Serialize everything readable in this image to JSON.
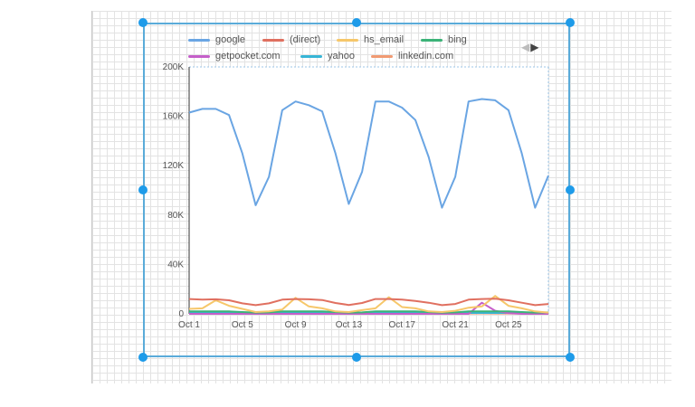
{
  "legend": {
    "items": [
      {
        "label": "google",
        "color": "#6aa5e3"
      },
      {
        "label": "(direct)",
        "color": "#e07060"
      },
      {
        "label": "hs_email",
        "color": "#f6c76a"
      },
      {
        "label": "bing",
        "color": "#3cb378"
      },
      {
        "label": "getpocket.com",
        "color": "#c45fc9"
      },
      {
        "label": "yahoo",
        "color": "#37b5d6"
      },
      {
        "label": "linkedin.com",
        "color": "#f19a72"
      }
    ],
    "pager_prev_icon": "triangle-left-icon",
    "pager_next_icon": "triangle-right-icon",
    "pager_prev": "◀",
    "pager_next": "▶"
  },
  "chart_data": {
    "type": "line",
    "x": [
      "Oct 1",
      "Oct 2",
      "Oct 3",
      "Oct 4",
      "Oct 5",
      "Oct 6",
      "Oct 7",
      "Oct 8",
      "Oct 9",
      "Oct 10",
      "Oct 11",
      "Oct 12",
      "Oct 13",
      "Oct 14",
      "Oct 15",
      "Oct 16",
      "Oct 17",
      "Oct 18",
      "Oct 19",
      "Oct 20",
      "Oct 21",
      "Oct 22",
      "Oct 23",
      "Oct 24",
      "Oct 25",
      "Oct 26",
      "Oct 27",
      "Oct 28"
    ],
    "xticks": [
      "Oct 1",
      "Oct 5",
      "Oct 9",
      "Oct 13",
      "Oct 17",
      "Oct 21",
      "Oct 25"
    ],
    "yticks": [
      "0",
      "40K",
      "80K",
      "120K",
      "160K",
      "200K"
    ],
    "ylim": [
      0,
      200000
    ],
    "series": [
      {
        "name": "google",
        "color": "#6aa5e3",
        "values": [
          163000,
          166000,
          166000,
          161000,
          130000,
          88000,
          111000,
          165000,
          172000,
          169000,
          164000,
          130000,
          89000,
          115000,
          172000,
          172000,
          167000,
          157000,
          127000,
          86000,
          111000,
          172000,
          174000,
          173000,
          165000,
          130000,
          86000,
          112000
        ]
      },
      {
        "name": "(direct)",
        "color": "#e07060",
        "values": [
          12000,
          11500,
          11800,
          11000,
          8500,
          7000,
          8500,
          11500,
          12000,
          11800,
          11200,
          8800,
          7200,
          8800,
          12000,
          12000,
          11500,
          10500,
          9000,
          7000,
          8000,
          11500,
          12000,
          12200,
          11000,
          9000,
          7000,
          8000
        ]
      },
      {
        "name": "hs_email",
        "color": "#f6c76a",
        "values": [
          4000,
          4500,
          11000,
          6500,
          4000,
          1500,
          2000,
          3500,
          13000,
          6000,
          4500,
          2000,
          1500,
          3000,
          4500,
          13500,
          5500,
          4500,
          2000,
          1500,
          2500,
          5000,
          6000,
          14500,
          6500,
          4500,
          2000,
          1000
        ]
      },
      {
        "name": "bing",
        "color": "#3cb378",
        "values": [
          2000,
          2000,
          2000,
          2000,
          1500,
          1000,
          1200,
          2000,
          2000,
          2000,
          2000,
          1500,
          1000,
          1200,
          2000,
          2000,
          2000,
          2000,
          1500,
          1000,
          1200,
          2000,
          2000,
          2000,
          2000,
          1500,
          1000,
          1200
        ]
      },
      {
        "name": "getpocket.com",
        "color": "#c45fc9",
        "values": [
          0,
          0,
          0,
          0,
          0,
          0,
          0,
          0,
          0,
          0,
          0,
          0,
          0,
          0,
          0,
          0,
          0,
          0,
          0,
          0,
          0,
          0,
          9000,
          2500,
          500,
          0,
          0,
          0
        ]
      },
      {
        "name": "yahoo",
        "color": "#37b5d6",
        "values": [
          700,
          700,
          700,
          700,
          600,
          500,
          500,
          700,
          700,
          700,
          700,
          600,
          500,
          500,
          700,
          700,
          700,
          700,
          600,
          500,
          500,
          700,
          700,
          700,
          700,
          600,
          500,
          500
        ]
      },
      {
        "name": "linkedin.com",
        "color": "#f19a72",
        "values": [
          300,
          300,
          400,
          300,
          300,
          200,
          200,
          300,
          400,
          300,
          300,
          200,
          200,
          300,
          300,
          400,
          300,
          300,
          200,
          200,
          300,
          300,
          400,
          300,
          300,
          200,
          200,
          300
        ]
      }
    ]
  }
}
